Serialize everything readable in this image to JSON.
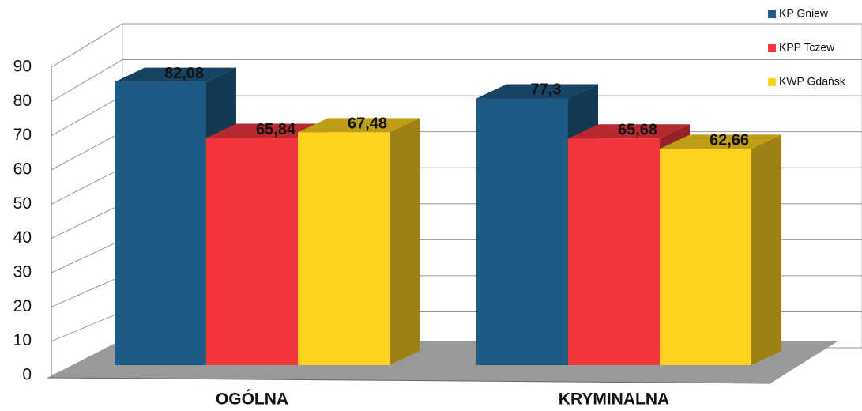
{
  "chart_data": {
    "type": "bar3d",
    "categories": [
      "OGÓLNA",
      "KRYMINALNA"
    ],
    "series": [
      {
        "name": "KP Gniew",
        "color": "#1f5a85",
        "values": [
          82.08,
          77.3
        ],
        "value_labels": [
          "82,08",
          "77,3"
        ]
      },
      {
        "name": "KPP Tczew",
        "color": "#f2363d",
        "values": [
          65.84,
          65.68
        ],
        "value_labels": [
          "65,84",
          "65,68"
        ]
      },
      {
        "name": "KWP Gdańsk",
        "color": "#fed21f",
        "values": [
          67.48,
          62.66
        ],
        "value_labels": [
          "67,48",
          "62,66"
        ]
      }
    ],
    "ylim": [
      0,
      90
    ],
    "yticks": [
      0,
      10,
      20,
      30,
      40,
      50,
      60,
      70,
      80,
      90
    ],
    "grid": true,
    "legend": "top-right"
  }
}
